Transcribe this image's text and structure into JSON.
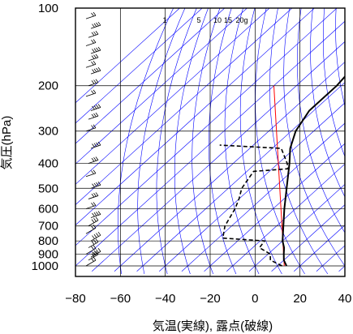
{
  "chart_data": {
    "type": "line",
    "chart_kind": "skew-T log-P sounding diagram",
    "xlabel": "気温(実線), 露点(破線)",
    "ylabel": "気圧(hPa)",
    "x_ticks": [
      -80,
      -60,
      -40,
      -20,
      0,
      20,
      40
    ],
    "y_ticks": [
      100,
      200,
      300,
      400,
      500,
      600,
      700,
      800,
      900,
      1000
    ],
    "y_scale": "log",
    "y_inverted": true,
    "xlim": [
      -80,
      40
    ],
    "ylim": [
      1050,
      100
    ],
    "grid": true,
    "mixing_ratio_labels": [
      "1",
      "5",
      "10",
      "15",
      "20g"
    ],
    "temperature": {
      "style": "solid",
      "color": "#000000",
      "points": [
        {
          "p": 1000,
          "t": 14
        },
        {
          "p": 950,
          "t": 10
        },
        {
          "p": 900,
          "t": 7
        },
        {
          "p": 850,
          "t": 4
        },
        {
          "p": 800,
          "t": 0
        },
        {
          "p": 700,
          "t": -7
        },
        {
          "p": 600,
          "t": -15
        },
        {
          "p": 500,
          "t": -24
        },
        {
          "p": 400,
          "t": -35
        },
        {
          "p": 350,
          "t": -42
        },
        {
          "p": 300,
          "t": -48
        },
        {
          "p": 250,
          "t": -52
        },
        {
          "p": 200,
          "t": -52
        },
        {
          "p": 150,
          "t": -55
        },
        {
          "p": 120,
          "t": -60
        },
        {
          "p": 100,
          "t": -63
        }
      ]
    },
    "dewpoint": {
      "style": "dashed",
      "color": "#000000",
      "points": [
        {
          "p": 1000,
          "t": 12
        },
        {
          "p": 950,
          "t": 4
        },
        {
          "p": 900,
          "t": 1
        },
        {
          "p": 850,
          "t": -7
        },
        {
          "p": 800,
          "t": -8
        },
        {
          "p": 780,
          "t": -28
        },
        {
          "p": 700,
          "t": -33
        },
        {
          "p": 600,
          "t": -37
        },
        {
          "p": 550,
          "t": -40
        },
        {
          "p": 500,
          "t": -44
        },
        {
          "p": 430,
          "t": -47
        },
        {
          "p": 420,
          "t": -33
        },
        {
          "p": 400,
          "t": -36
        },
        {
          "p": 350,
          "t": -46
        },
        {
          "p": 340,
          "t": -75
        }
      ]
    },
    "reference_line": {
      "color": "#ff0000",
      "points": [
        {
          "p": 200,
          "t": -80
        },
        {
          "p": 1000,
          "t": 13
        }
      ]
    },
    "colors": {
      "grid": "#000000",
      "isotherm_adiabat": "#0000ff",
      "temperature": "#000000",
      "dewpoint": "#000000",
      "reference": "#ff0000",
      "wind_barb": "#000000"
    },
    "wind_barbs_levels_hPa": [
      1000,
      950,
      925,
      900,
      850,
      800,
      750,
      700,
      650,
      600,
      550,
      500,
      450,
      400,
      350,
      300,
      270,
      250,
      220,
      200,
      180,
      170,
      160,
      150,
      140,
      130,
      120,
      110,
      100
    ]
  }
}
